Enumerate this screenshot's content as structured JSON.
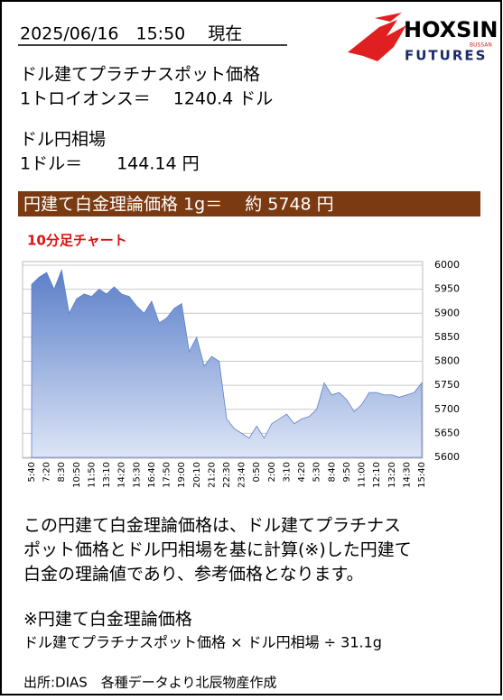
{
  "header": {
    "datetime": "2025/06/16　15:50　 現在",
    "logo_main": "HOXSIN",
    "logo_sub": "FUTURES",
    "logo_small": "BUSSAN"
  },
  "prices": {
    "usd_label": "ドル建てプラチナスポット価格",
    "usd_line": "1トロイオンス＝　 1240.4 ドル",
    "fx_label": "ドル円相場",
    "fx_line": "1ドル＝　　144.14 円",
    "banner": "円建て白金理論価格 1g＝　 約 5748 円"
  },
  "chart_data": {
    "type": "area",
    "title": "10分足チャート",
    "categories": [
      "5:40",
      null,
      "7:20",
      null,
      "8:30",
      null,
      "10:50",
      null,
      "11:50",
      null,
      "13:10",
      null,
      "14:20",
      null,
      "15:30",
      null,
      "16:40",
      null,
      "17:50",
      null,
      "19:00",
      null,
      "20:10",
      null,
      "21:20",
      null,
      "22:30",
      null,
      "23:40",
      null,
      "0:50",
      null,
      "2:00",
      null,
      "3:10",
      null,
      "4:20",
      null,
      "5:30",
      null,
      "8:40",
      null,
      "9:50",
      null,
      "11:00",
      null,
      "12:10",
      null,
      "13:20",
      null,
      "14:30",
      null,
      "15:40"
    ],
    "values": [
      5960,
      5975,
      5985,
      5950,
      5990,
      5900,
      5930,
      5940,
      5935,
      5950,
      5940,
      5955,
      5940,
      5935,
      5915,
      5900,
      5925,
      5880,
      5890,
      5910,
      5920,
      5820,
      5850,
      5790,
      5810,
      5800,
      5680,
      5660,
      5650,
      5640,
      5665,
      5640,
      5670,
      5680,
      5690,
      5670,
      5680,
      5685,
      5700,
      5755,
      5730,
      5735,
      5720,
      5695,
      5710,
      5735,
      5735,
      5730,
      5730,
      5725,
      5730,
      5735,
      5755
    ],
    "color": "#5b7fc9",
    "ylim": [
      5600,
      6000
    ],
    "yticks": [
      5600,
      5650,
      5700,
      5750,
      5800,
      5850,
      5900,
      5950,
      6000
    ],
    "grid": true
  },
  "notes": {
    "paragraph": [
      "この円建て白金理論価格は、ドル建てプラチナス",
      "ポット価格とドル円相場を基に計算(※)した円建て",
      "白金の理論値であり、参考価格となります。"
    ],
    "formula_title": "※円建て白金理論価格",
    "formula": "ドル建てプラチナスポット価格 × ドル円相場 ÷ 31.1g",
    "source": "出所:DIAS　各種データより北辰物産作成"
  }
}
